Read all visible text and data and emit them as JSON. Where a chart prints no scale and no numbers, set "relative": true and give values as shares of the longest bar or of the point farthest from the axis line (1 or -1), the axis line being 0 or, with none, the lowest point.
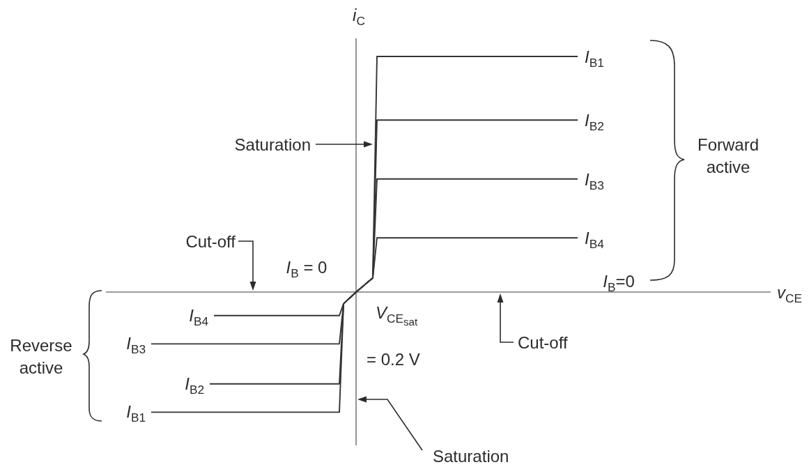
{
  "chart_data": {
    "type": "line",
    "relative": true,
    "ylabel": "i$_{C}$",
    "categories": [
      null,
      null,
      null,
      null,
      null,
      null,
      null,
      null,
      null,
      null,
      null,
      null,
      null,
      null,
      null,
      null,
      null,
      null,
      null,
      null,
      null,
      null,
      null,
      null,
      null,
      null,
      null,
      null,
      null,
      null,
      null,
      null,
      null,
      null,
      null,
      null,
      null,
      null,
      null,
      null,
      null,
      null,
      null,
      null,
      null,
      null,
      null,
      null,
      null,
      null,
      null,
      null,
      null,
      null,
      null,
      null,
      null,
      null,
      null,
      null,
      null,
      null,
      null,
      null,
      null,
      null,
      null,
      null,
      null,
      null,
      null,
      null,
      null,
      null,
      null,
      null,
      null,
      null,
      null,
      null,
      null,
      null,
      null,
      null,
      null,
      null,
      null,
      null,
      null,
      null,
      null,
      null,
      null,
      null,
      null,
      null,
      null,
      null,
      null,
      null,
      null,
      null,
      null
    ],
    "series": [
      {
        "name": "I$_{B1}$",
        "color": "#333333",
        "values": [
          -0.51,
          -0.51,
          -0.51,
          -0.51,
          -0.51,
          -0.51,
          -0.51,
          -0.51,
          -0.51,
          -0.51,
          -0.51,
          -0.51,
          -0.51,
          -0.51,
          -0.51,
          -0.51,
          -0.51,
          -0.51,
          -0.51,
          -0.51,
          -0.51,
          -0.51,
          -0.51,
          -0.51,
          -0.51,
          -0.51,
          -0.51,
          -0.51,
          -0.51,
          -0.51,
          -0.51,
          -0.51,
          -0.51,
          -0.51,
          -0.51,
          -0.51,
          -0.51,
          -0.51,
          -0.51,
          -0.51,
          -0.51,
          -0.51,
          -0.51,
          -0.51,
          -0.51,
          -0.51,
          -0.05,
          -0.033,
          -0.017,
          0,
          0.015,
          0.03,
          0.045,
          0.06,
          1,
          1,
          1,
          1,
          1,
          1,
          1,
          1,
          1,
          1,
          1,
          1,
          1,
          1,
          1,
          1,
          1,
          1,
          1,
          1,
          1,
          1,
          1,
          1,
          1,
          1,
          1,
          1,
          1,
          1,
          1,
          1,
          1,
          1,
          1,
          1,
          1,
          1,
          1,
          1,
          1,
          1,
          1,
          1,
          1,
          1,
          1,
          1,
          1
        ]
      },
      {
        "name": "I$_{B2}$",
        "color": "#333333",
        "values": [
          null,
          null,
          null,
          null,
          null,
          null,
          null,
          null,
          null,
          null,
          null,
          null,
          null,
          null,
          -0.39,
          -0.39,
          -0.39,
          -0.39,
          -0.39,
          -0.39,
          -0.39,
          -0.39,
          -0.39,
          -0.39,
          -0.39,
          -0.39,
          -0.39,
          -0.39,
          -0.39,
          -0.39,
          -0.39,
          -0.39,
          -0.39,
          -0.39,
          -0.39,
          -0.39,
          -0.39,
          -0.39,
          -0.39,
          -0.39,
          -0.39,
          -0.39,
          -0.39,
          -0.39,
          -0.39,
          -0.39,
          -0.05,
          -0.033,
          -0.017,
          0,
          0.015,
          0.03,
          0.045,
          0.06,
          0.73,
          0.73,
          0.73,
          0.73,
          0.73,
          0.73,
          0.73,
          0.73,
          0.73,
          0.73,
          0.73,
          0.73,
          0.73,
          0.73,
          0.73,
          0.73,
          0.73,
          0.73,
          0.73,
          0.73,
          0.73,
          0.73,
          0.73,
          0.73,
          0.73,
          0.73,
          0.73,
          0.73,
          0.73,
          0.73,
          0.73,
          0.73,
          0.73,
          0.73,
          0.73,
          0.73,
          0.73,
          0.73,
          0.73,
          0.73,
          0.73,
          0.73,
          0.73,
          0.73,
          0.73,
          0.73,
          0.73,
          0.73,
          0.73
        ]
      },
      {
        "name": "I$_{B3}$",
        "color": "#333333",
        "values": [
          -0.22,
          -0.22,
          -0.22,
          -0.22,
          -0.22,
          -0.22,
          -0.22,
          -0.22,
          -0.22,
          -0.22,
          -0.22,
          -0.22,
          -0.22,
          -0.22,
          -0.22,
          -0.22,
          -0.22,
          -0.22,
          -0.22,
          -0.22,
          -0.22,
          -0.22,
          -0.22,
          -0.22,
          -0.22,
          -0.22,
          -0.22,
          -0.22,
          -0.22,
          -0.22,
          -0.22,
          -0.22,
          -0.22,
          -0.22,
          -0.22,
          -0.22,
          -0.22,
          -0.22,
          -0.22,
          -0.22,
          -0.22,
          -0.22,
          -0.22,
          -0.22,
          -0.22,
          -0.22,
          -0.05,
          -0.033,
          -0.017,
          0,
          0.015,
          0.03,
          0.045,
          0.06,
          0.48,
          0.48,
          0.48,
          0.48,
          0.48,
          0.48,
          0.48,
          0.48,
          0.48,
          0.48,
          0.48,
          0.48,
          0.48,
          0.48,
          0.48,
          0.48,
          0.48,
          0.48,
          0.48,
          0.48,
          0.48,
          0.48,
          0.48,
          0.48,
          0.48,
          0.48,
          0.48,
          0.48,
          0.48,
          0.48,
          0.48,
          0.48,
          0.48,
          0.48,
          0.48,
          0.48,
          0.48,
          0.48,
          0.48,
          0.48,
          0.48,
          0.48,
          0.48,
          0.48,
          0.48,
          0.48,
          0.48,
          0.48,
          0.48
        ]
      },
      {
        "name": "I$_{B4}$",
        "color": "#333333",
        "values": [
          null,
          null,
          null,
          null,
          null,
          null,
          null,
          null,
          null,
          null,
          null,
          null,
          null,
          null,
          null,
          -0.1,
          -0.1,
          -0.1,
          -0.1,
          -0.1,
          -0.1,
          -0.1,
          -0.1,
          -0.1,
          -0.1,
          -0.1,
          -0.1,
          -0.1,
          -0.1,
          -0.1,
          -0.1,
          -0.1,
          -0.1,
          -0.1,
          -0.1,
          -0.1,
          -0.1,
          -0.1,
          -0.1,
          -0.1,
          -0.1,
          -0.1,
          -0.1,
          -0.1,
          -0.1,
          -0.1,
          -0.05,
          -0.033,
          -0.017,
          0,
          0.015,
          0.03,
          0.045,
          0.06,
          0.23,
          0.23,
          0.23,
          0.23,
          0.23,
          0.23,
          0.23,
          0.23,
          0.23,
          0.23,
          0.23,
          0.23,
          0.23,
          0.23,
          0.23,
          0.23,
          0.23,
          0.23,
          0.23,
          0.23,
          0.23,
          0.23,
          0.23,
          0.23,
          0.23,
          0.23,
          0.23,
          0.23,
          0.23,
          0.23,
          0.23,
          0.23,
          0.23,
          0.23,
          0.23,
          0.23,
          0.23,
          0.23,
          0.23,
          0.23,
          0.23,
          0.23,
          0.23,
          0.23,
          0.23,
          0.23,
          0.23,
          0.23,
          0.23
        ]
      }
    ],
    "annotations": [
      "Saturation",
      "Cut-off",
      "I$_{B}$ = 0",
      "I$_{B}$=0",
      "Forward active",
      "Reverse active",
      "V$_{CE}$$_{sat}$",
      "= 0.2 V",
      "Cut-off",
      "Saturation",
      "v$_{CE}$"
    ]
  }
}
